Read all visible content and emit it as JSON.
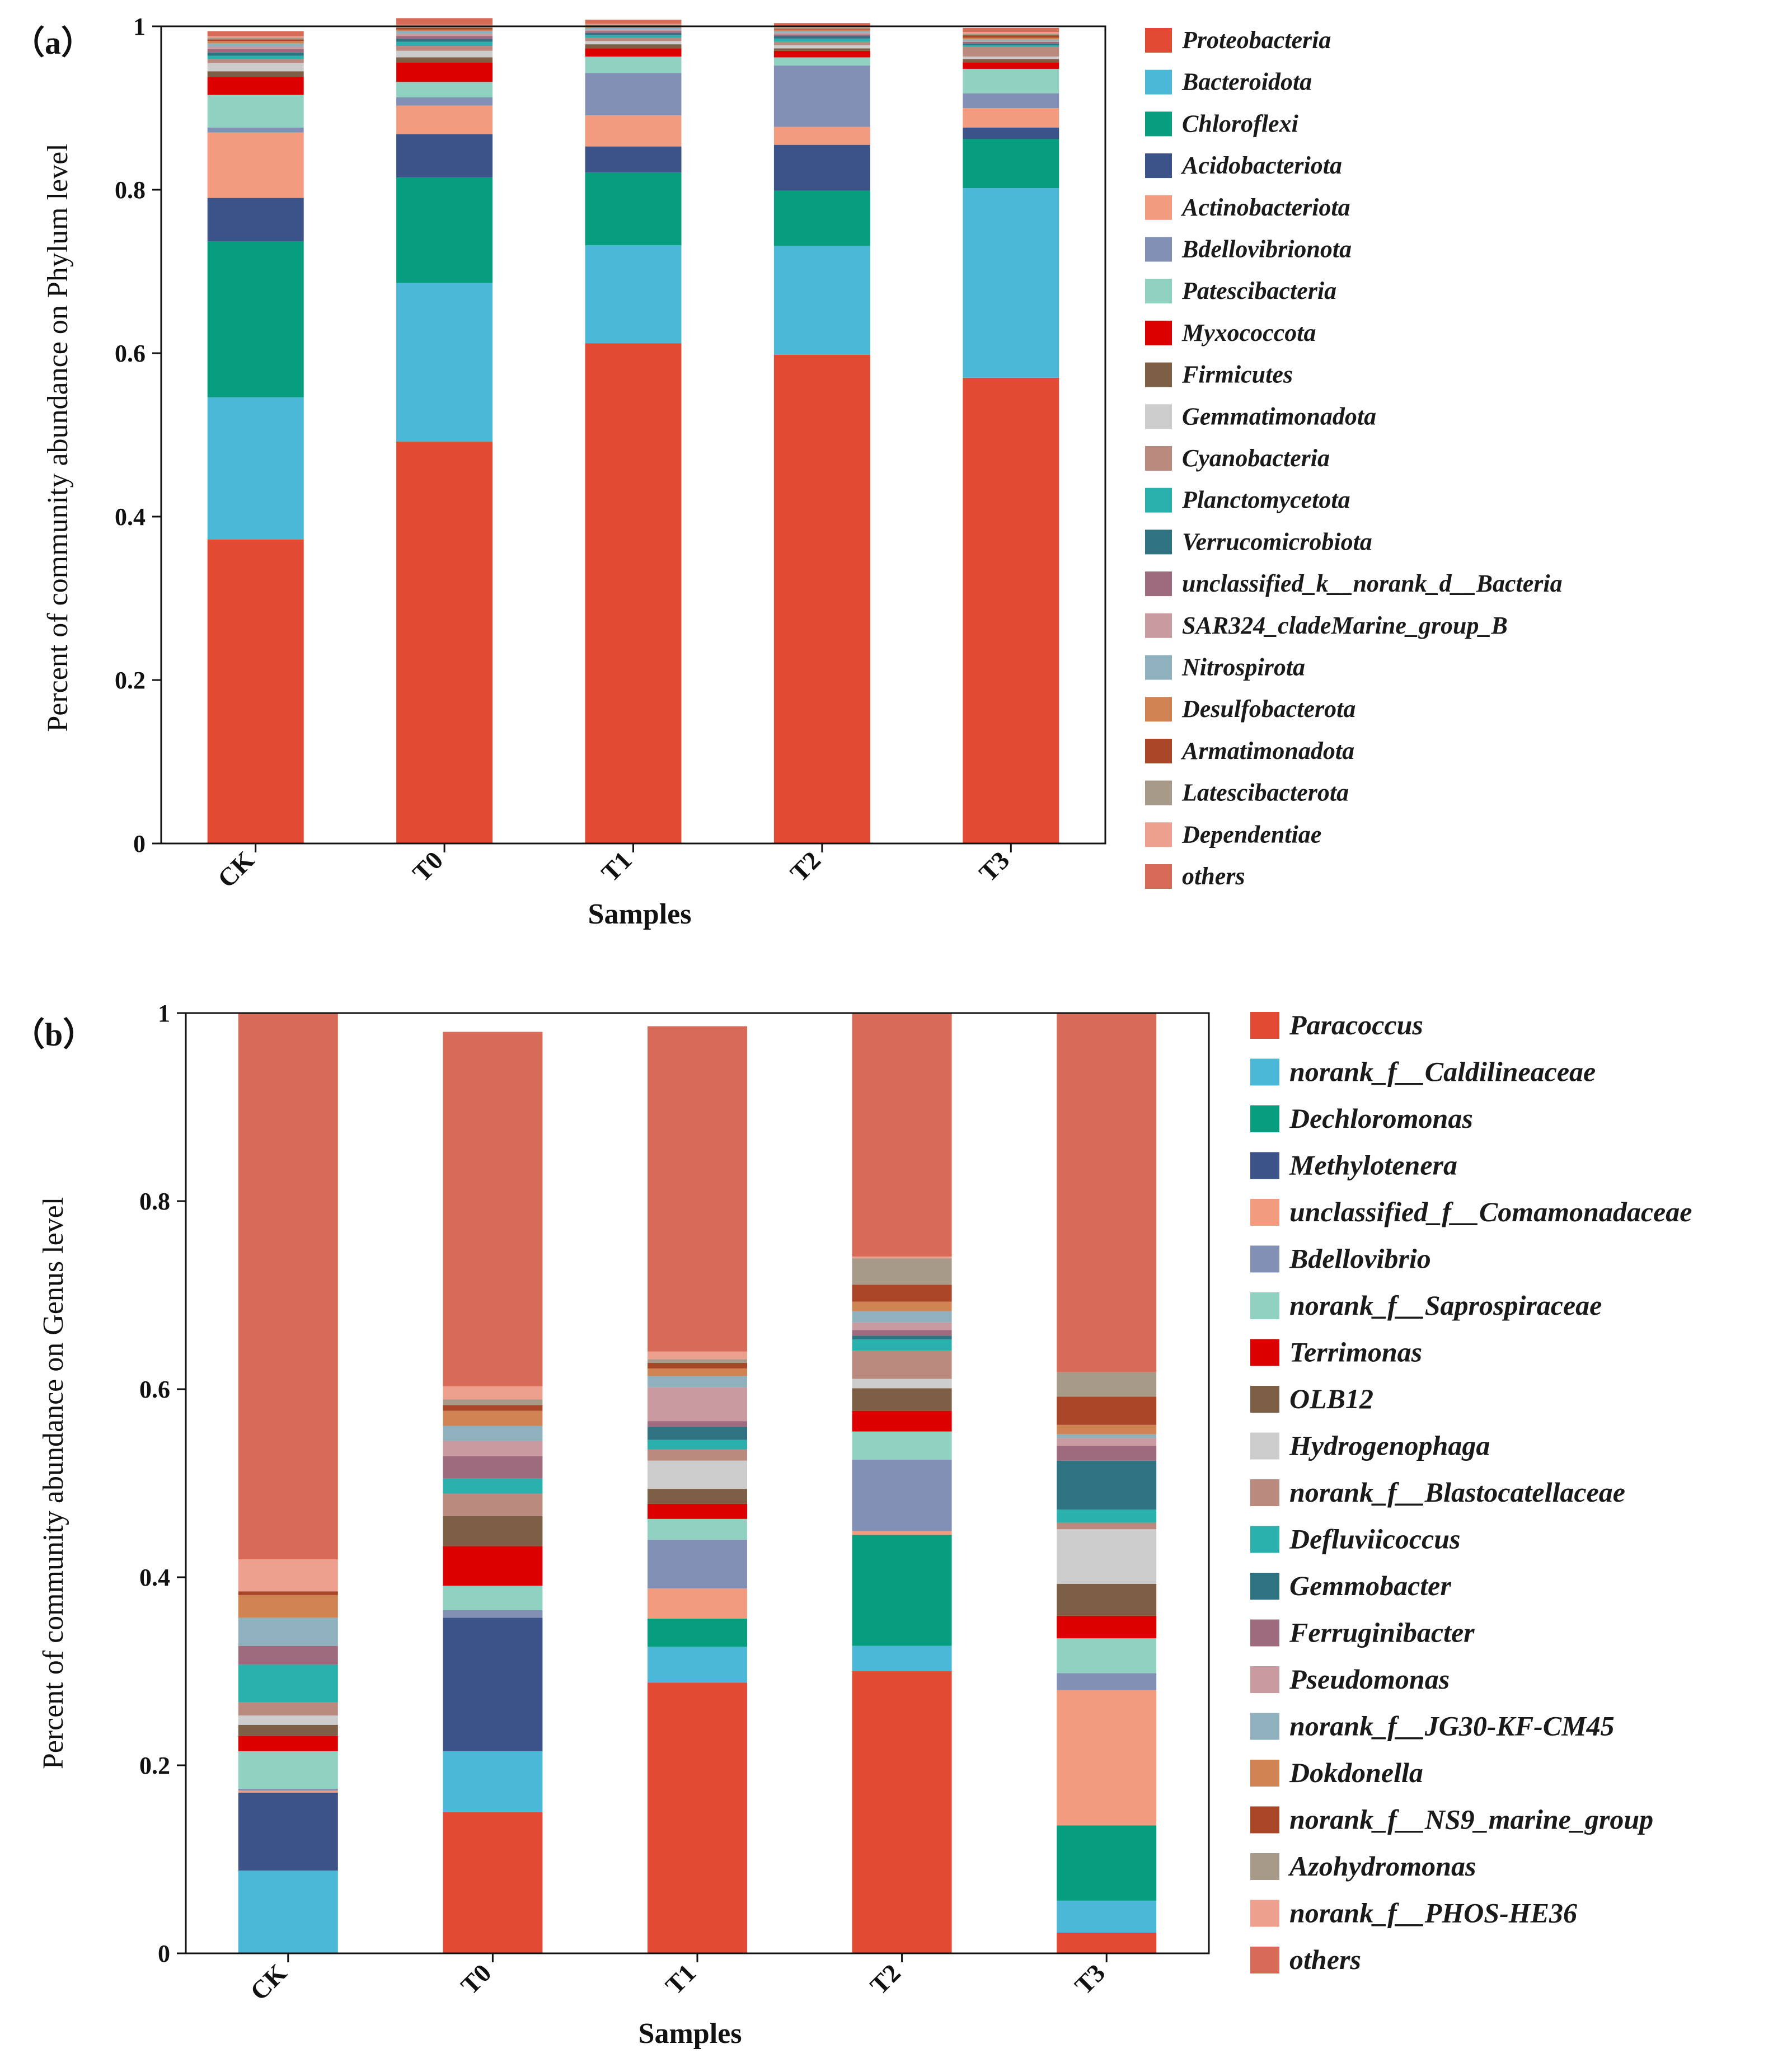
{
  "chart_data": [
    {
      "type": "bar",
      "stacked": true,
      "panel_label": "（a）",
      "xlabel": "Samples",
      "ylabel": "Percent of community abundance on Phylum level",
      "ylim": [
        0,
        1
      ],
      "yticks": [
        "0",
        "0.2",
        "0.4",
        "0.6",
        "0.8",
        "1"
      ],
      "categories": [
        "CK",
        "T0",
        "T1",
        "T2",
        "T3"
      ],
      "legend_position": "right",
      "series": [
        {
          "name": "Proteobacteria",
          "color": "#e34a33",
          "values": [
            0.372,
            0.492,
            0.612,
            0.598,
            0.57
          ]
        },
        {
          "name": "Bacteroidota",
          "color": "#4ab8d6",
          "values": [
            0.174,
            0.194,
            0.12,
            0.133,
            0.232
          ]
        },
        {
          "name": "Chloroflexi",
          "color": "#069e7e",
          "values": [
            0.191,
            0.129,
            0.089,
            0.068,
            0.06
          ]
        },
        {
          "name": "Acidobacteriota",
          "color": "#3b5389",
          "values": [
            0.053,
            0.053,
            0.032,
            0.056,
            0.014
          ]
        },
        {
          "name": "Actinobacteriota",
          "color": "#f29b7f",
          "values": [
            0.08,
            0.035,
            0.038,
            0.022,
            0.024
          ]
        },
        {
          "name": "Bdellovibrionota",
          "color": "#8390b5",
          "values": [
            0.006,
            0.01,
            0.052,
            0.075,
            0.018
          ]
        },
        {
          "name": "Patescibacteria",
          "color": "#91d1c1",
          "values": [
            0.04,
            0.019,
            0.02,
            0.01,
            0.03
          ]
        },
        {
          "name": "Myxococcota",
          "color": "#dc0000",
          "values": [
            0.022,
            0.024,
            0.01,
            0.008,
            0.008
          ]
        },
        {
          "name": "Firmicutes",
          "color": "#7d5f45",
          "values": [
            0.007,
            0.006,
            0.005,
            0.003,
            0.004
          ]
        },
        {
          "name": "Gemmatimonadota",
          "color": "#cccccc",
          "values": [
            0.01,
            0.008,
            0.004,
            0.004,
            0.003
          ]
        },
        {
          "name": "Cyanobacteria",
          "color": "#bb8a7e",
          "values": [
            0.005,
            0.006,
            0.004,
            0.004,
            0.012
          ]
        },
        {
          "name": "Planctomycetota",
          "color": "#2ab1ad",
          "values": [
            0.004,
            0.005,
            0.003,
            0.004,
            0.002
          ]
        },
        {
          "name": "Verrucomicrobiota",
          "color": "#2f7282",
          "values": [
            0.004,
            0.004,
            0.003,
            0.003,
            0.002
          ]
        },
        {
          "name": "unclassified_k__norank_d__Bacteria",
          "color": "#9e6b7e",
          "values": [
            0.004,
            0.003,
            0.002,
            0.002,
            0.002
          ]
        },
        {
          "name": "SAR324_cladeMarine_group_B",
          "color": "#c99aa0",
          "values": [
            0.003,
            0.003,
            0.002,
            0.002,
            0.001
          ]
        },
        {
          "name": "Nitrospirota",
          "color": "#8fb0bd",
          "values": [
            0.004,
            0.003,
            0.002,
            0.002,
            0.002
          ]
        },
        {
          "name": "Desulfobacterota",
          "color": "#d08454",
          "values": [
            0.003,
            0.002,
            0.002,
            0.002,
            0.002
          ]
        },
        {
          "name": "Armatimonadota",
          "color": "#aa4628",
          "values": [
            0.002,
            0.002,
            0.001,
            0.001,
            0.003
          ]
        },
        {
          "name": "Latescibacterota",
          "color": "#a79a88",
          "values": [
            0.002,
            0.002,
            0.001,
            0.001,
            0.002
          ]
        },
        {
          "name": "Dependentiae",
          "color": "#eda08d",
          "values": [
            0.002,
            0.002,
            0.001,
            0.001,
            0.002
          ]
        },
        {
          "name": "others",
          "color": "#d86a58",
          "values": [
            0.006,
            0.008,
            0.005,
            0.005,
            0.005
          ]
        }
      ]
    },
    {
      "type": "bar",
      "stacked": true,
      "panel_label": "（b）",
      "xlabel": "Samples",
      "ylabel": "Percent of community abundance on Genus level",
      "ylim": [
        0,
        1
      ],
      "yticks": [
        "0",
        "0.2",
        "0.4",
        "0.6",
        "0.8",
        "1"
      ],
      "categories": [
        "CK",
        "T0",
        "T1",
        "T2",
        "T3"
      ],
      "legend_position": "right",
      "series": [
        {
          "name": "Paracoccus",
          "color": "#e34a33",
          "values": [
            0.0,
            0.15,
            0.288,
            0.3,
            0.022
          ]
        },
        {
          "name": "norank_f__Caldilineaceae",
          "color": "#4ab8d6",
          "values": [
            0.088,
            0.065,
            0.038,
            0.027,
            0.034
          ]
        },
        {
          "name": "Dechloromonas",
          "color": "#069e7e",
          "values": [
            0.0,
            0.0,
            0.03,
            0.118,
            0.08
          ]
        },
        {
          "name": "Methylotenera",
          "color": "#3b5389",
          "values": [
            0.083,
            0.142,
            0.0,
            0.0,
            0.0
          ]
        },
        {
          "name": "unclassified_f__Comamonadaceae",
          "color": "#f29b7f",
          "values": [
            0.002,
            0.0,
            0.032,
            0.004,
            0.144
          ]
        },
        {
          "name": "Bdellovibrio",
          "color": "#8390b5",
          "values": [
            0.002,
            0.008,
            0.052,
            0.076,
            0.018
          ]
        },
        {
          "name": "norank_f__Saprospiraceae",
          "color": "#91d1c1",
          "values": [
            0.04,
            0.026,
            0.022,
            0.03,
            0.037
          ]
        },
        {
          "name": "Terrimonas",
          "color": "#dc0000",
          "values": [
            0.016,
            0.042,
            0.016,
            0.022,
            0.024
          ]
        },
        {
          "name": "OLB12",
          "color": "#7d5f45",
          "values": [
            0.012,
            0.032,
            0.016,
            0.024,
            0.034
          ]
        },
        {
          "name": "Hydrogenophaga",
          "color": "#cccccc",
          "values": [
            0.01,
            0.0,
            0.03,
            0.01,
            0.058
          ]
        },
        {
          "name": "norank_f__Blastocatellaceae",
          "color": "#bb8a7e",
          "values": [
            0.014,
            0.024,
            0.012,
            0.03,
            0.007
          ]
        },
        {
          "name": "Defluviicoccus",
          "color": "#2ab1ad",
          "values": [
            0.04,
            0.016,
            0.01,
            0.012,
            0.014
          ]
        },
        {
          "name": "Gemmobacter",
          "color": "#2f7282",
          "values": [
            0.0,
            0.0,
            0.014,
            0.004,
            0.052
          ]
        },
        {
          "name": "Ferruginibacter",
          "color": "#9e6b7e",
          "values": [
            0.02,
            0.024,
            0.006,
            0.006,
            0.016
          ]
        },
        {
          "name": "Pseudomonas",
          "color": "#c99aa0",
          "values": [
            0.0,
            0.016,
            0.036,
            0.008,
            0.008
          ]
        },
        {
          "name": "norank_f__JG30-KF-CM45",
          "color": "#8fb0bd",
          "values": [
            0.03,
            0.016,
            0.012,
            0.012,
            0.004
          ]
        },
        {
          "name": "Dokdonella",
          "color": "#d08454",
          "values": [
            0.024,
            0.016,
            0.008,
            0.01,
            0.01
          ]
        },
        {
          "name": "norank_f__NS9_marine_group",
          "color": "#aa4628",
          "values": [
            0.004,
            0.006,
            0.006,
            0.018,
            0.03
          ]
        },
        {
          "name": "Azohydromonas",
          "color": "#a79a88",
          "values": [
            0.0,
            0.006,
            0.004,
            0.028,
            0.026
          ]
        },
        {
          "name": "norank_f__PHOS-HE36",
          "color": "#eda08d",
          "values": [
            0.034,
            0.014,
            0.008,
            0.002,
            0.0
          ]
        },
        {
          "name": "others",
          "color": "#d86a58",
          "values": [
            0.581,
            0.377,
            0.346,
            0.259,
            0.382
          ]
        }
      ]
    }
  ]
}
